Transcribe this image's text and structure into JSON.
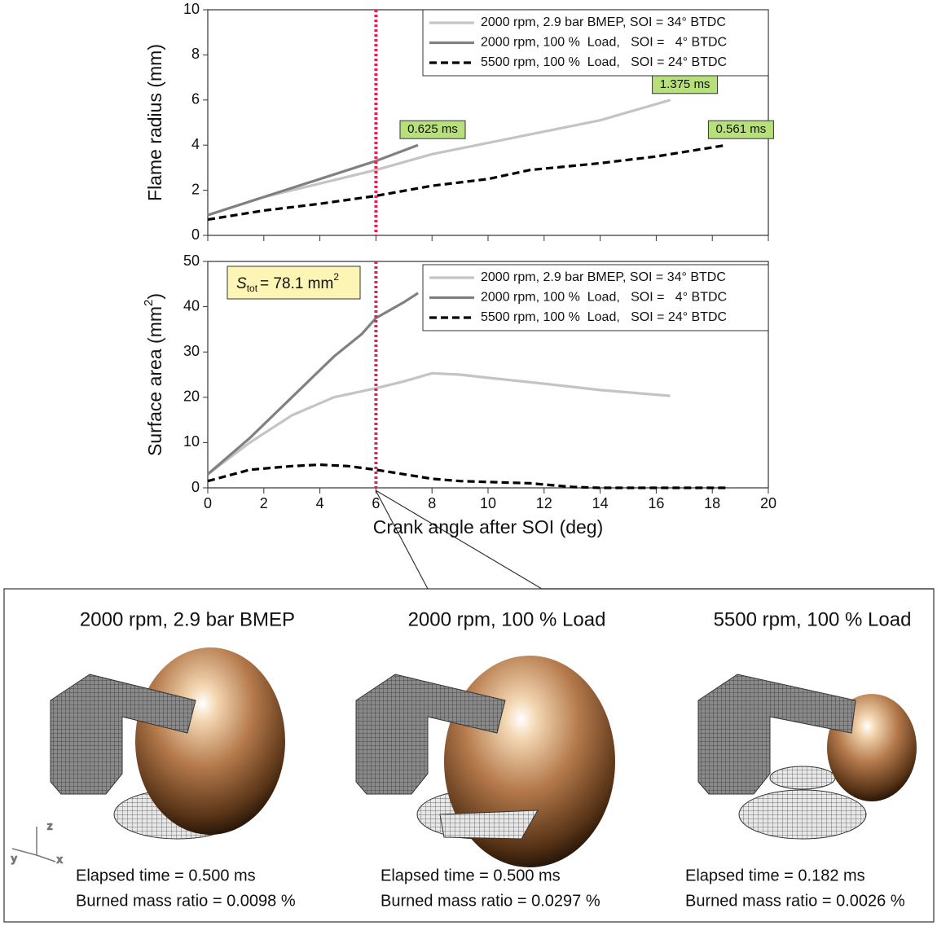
{
  "chart_data": [
    {
      "type": "line",
      "ylabel": "Flame radius (mm)",
      "xlim": [
        0,
        20
      ],
      "xticks": [
        0,
        2,
        4,
        6,
        8,
        10,
        12,
        14,
        16,
        18,
        20
      ],
      "ylim": [
        0,
        10
      ],
      "yticks": [
        0,
        2,
        4,
        6,
        8,
        10
      ],
      "vline": 6,
      "vline_color": "#e8204e",
      "legend": "upper right",
      "series": [
        {
          "name": "2000 rpm, 2.9 bar BMEP, SOI = 34° BTDC",
          "color": "#c4c4c4",
          "style": "solid",
          "end_label": "1.375 ms",
          "x": [
            0,
            2,
            4,
            6,
            8,
            10,
            12,
            14,
            16.5
          ],
          "values": [
            0.9,
            1.7,
            2.3,
            2.9,
            3.6,
            4.1,
            4.6,
            5.1,
            6.0
          ]
        },
        {
          "name": "2000 rpm, 100 %  Load,   SOI =   4° BTDC",
          "color": "#808080",
          "style": "solid",
          "end_label": "0.625 ms",
          "x": [
            0,
            2,
            4,
            6,
            7.5
          ],
          "values": [
            0.9,
            1.7,
            2.5,
            3.3,
            4.0
          ]
        },
        {
          "name": "5500 rpm, 100 %  Load,   SOI = 24° BTDC",
          "color": "#000000",
          "style": "dashed",
          "end_label": "0.561 ms",
          "x": [
            0,
            2,
            4,
            6,
            8,
            10,
            11.5,
            14,
            16,
            18.5
          ],
          "values": [
            0.7,
            1.1,
            1.4,
            1.75,
            2.2,
            2.5,
            2.9,
            3.2,
            3.5,
            4.0
          ]
        }
      ]
    },
    {
      "type": "line",
      "xlabel": "Crank angle after SOI (deg)",
      "ylabel": {
        "text": "Surface area (mm",
        "superscript": "2",
        "suffix": ")"
      },
      "annotation": {
        "symbol": "S",
        "subscript": "tot",
        "text": "= 78.1 mm",
        "superscript": "2"
      },
      "xlim": [
        0,
        20
      ],
      "xticks": [
        0,
        2,
        4,
        6,
        8,
        10,
        12,
        14,
        16,
        18,
        20
      ],
      "ylim": [
        0,
        50
      ],
      "yticks": [
        0,
        10,
        20,
        30,
        40,
        50
      ],
      "vline": 6,
      "vline_color": "#e8204e",
      "legend": "upper right",
      "series": [
        {
          "name": "2000 rpm, 2.9 bar BMEP, SOI = 34° BTDC",
          "color": "#c4c4c4",
          "style": "solid",
          "x": [
            0,
            1.5,
            3,
            4.5,
            6,
            7,
            8,
            9,
            10,
            12,
            14,
            16.5
          ],
          "values": [
            3,
            10,
            16,
            20,
            22,
            23.5,
            25.3,
            25,
            24.3,
            23,
            21.6,
            20.3
          ]
        },
        {
          "name": "2000 rpm, 100 %  Load,   SOI =   4° BTDC",
          "color": "#808080",
          "style": "solid",
          "x": [
            0,
            1.5,
            3,
            4.5,
            5.5,
            6,
            7,
            7.5
          ],
          "values": [
            3,
            11,
            20,
            29,
            34,
            37.5,
            41,
            43
          ]
        },
        {
          "name": "5500 rpm, 100 %  Load,   SOI = 24° BTDC",
          "color": "#000000",
          "style": "dashed",
          "x": [
            0,
            1.5,
            3,
            4,
            5,
            6,
            7,
            8,
            9,
            10,
            11.5,
            13,
            14,
            16,
            18.5
          ],
          "values": [
            1.5,
            4,
            4.8,
            5.1,
            4.8,
            4,
            3,
            2,
            1.5,
            1.3,
            1,
            0.2,
            0,
            0,
            0
          ]
        }
      ]
    }
  ],
  "renderings": [
    {
      "title": "2000 rpm, 2.9 bar BMEP",
      "elapsed": "Elapsed time = 0.500 ms",
      "burned": "Burned mass ratio = 0.0098 %"
    },
    {
      "title": "2000 rpm, 100 % Load",
      "elapsed": "Elapsed time = 0.500 ms",
      "burned": "Burned mass ratio = 0.0297 %"
    },
    {
      "title": "5500 rpm, 100 % Load",
      "elapsed": "Elapsed time = 0.182 ms",
      "burned": "Burned mass ratio = 0.0026 %"
    }
  ],
  "axes_triad": {
    "x": "x",
    "y": "y",
    "z": "z"
  }
}
